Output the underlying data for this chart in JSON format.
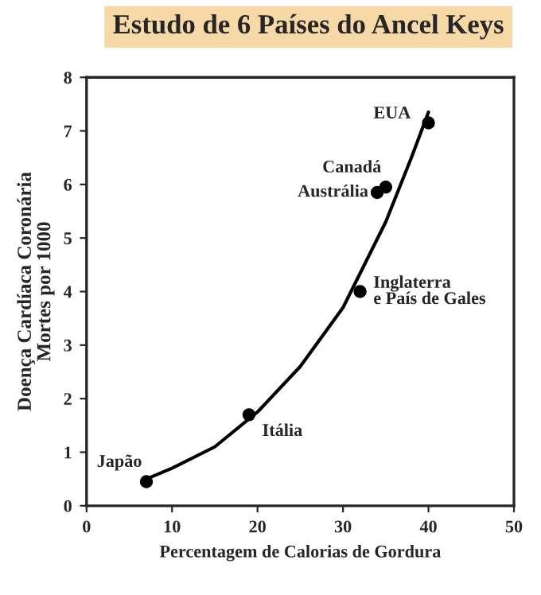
{
  "chart_data": {
    "type": "scatter",
    "title": "Estudo de 6 Países do Ancel Keys",
    "xlabel": "Percentagem de Calorias de Gordura",
    "ylabel": "Doença Cardíaca Coronária\nMortes por 1000",
    "series": [
      {
        "color": "#000000",
        "marker": "circle",
        "x": [
          7,
          19,
          32,
          34,
          35,
          40
        ],
        "values": [
          0.45,
          1.7,
          4.0,
          5.85,
          5.95,
          7.15
        ]
      },
      {
        "type": "line",
        "marker": "none",
        "color": "#000000",
        "x": [
          7,
          10,
          15,
          20,
          25,
          30,
          35,
          38,
          40
        ],
        "values": [
          0.5,
          0.7,
          1.1,
          1.75,
          2.6,
          3.7,
          5.3,
          6.5,
          7.35
        ]
      }
    ],
    "annotations": [
      {
        "text": "Japão",
        "x": 7,
        "y": 0.45
      },
      {
        "text": "Itália",
        "x": 19,
        "y": 1.7
      },
      {
        "text": "Inglaterra\ne País de Gales",
        "x": 32,
        "y": 4.0
      },
      {
        "text": "Austrália",
        "x": 34,
        "y": 5.85
      },
      {
        "text": "Canadá",
        "x": 35,
        "y": 5.95
      },
      {
        "text": "EUA",
        "x": 40,
        "y": 7.15
      }
    ],
    "xlim": [
      0,
      50
    ],
    "ylim": [
      0,
      8
    ],
    "xticks": [
      0,
      10,
      20,
      30,
      40,
      50
    ],
    "yticks": [
      0,
      1,
      2,
      3,
      4,
      5,
      6,
      7,
      8
    ],
    "grid": false,
    "legend": false,
    "line_style": "solid"
  }
}
